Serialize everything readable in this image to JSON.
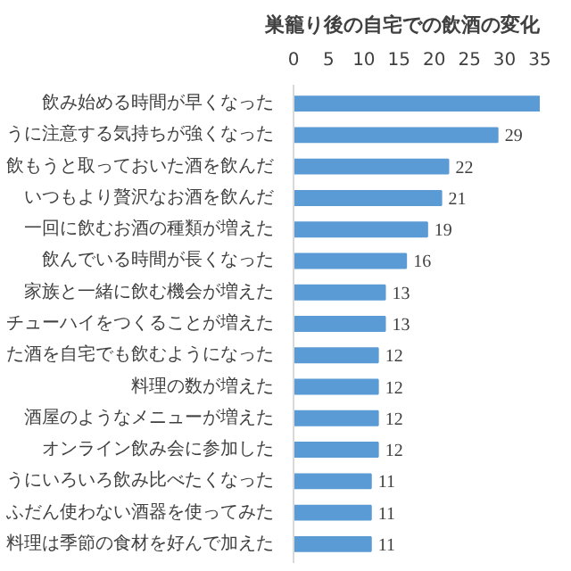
{
  "chart_data": {
    "type": "bar",
    "orientation": "horizontal",
    "title": "巣籠り後の自宅での飲酒の変化",
    "categories": [
      "飲み始める時間が早くなった",
      "うに注意する気持ちが強くなった",
      "飲もうと取っておいた酒を飲んだ",
      "いつもより贅沢なお酒を飲んだ",
      "一回に飲むお酒の種類が増えた",
      "飲んでいる時間が長くなった",
      "家族と一緒に飲む機会が増えた",
      "チューハイをつくることが増えた",
      "た酒を自宅でも飲むようになった",
      "料理の数が増えた",
      "酒屋のようなメニューが増えた",
      "オンライン飲み会に参加した",
      "うにいろいろ飲み比べたくなった",
      "ふだん使わない酒器を使ってみた",
      "料理は季節の食材を好んで加えた"
    ],
    "values": [
      35,
      29,
      22,
      21,
      19,
      16,
      13,
      13,
      12,
      12,
      12,
      12,
      11,
      11,
      11
    ],
    "value_labels": [
      null,
      "29",
      "22",
      "21",
      "19",
      "16",
      "13",
      "13",
      "12",
      "12",
      "12",
      "12",
      "11",
      "11",
      "11"
    ],
    "color": "#5b9bd5",
    "xlim": [
      0,
      35
    ],
    "xticks": [
      0,
      5,
      10,
      15,
      20,
      25,
      30,
      35
    ],
    "grid": false
  }
}
